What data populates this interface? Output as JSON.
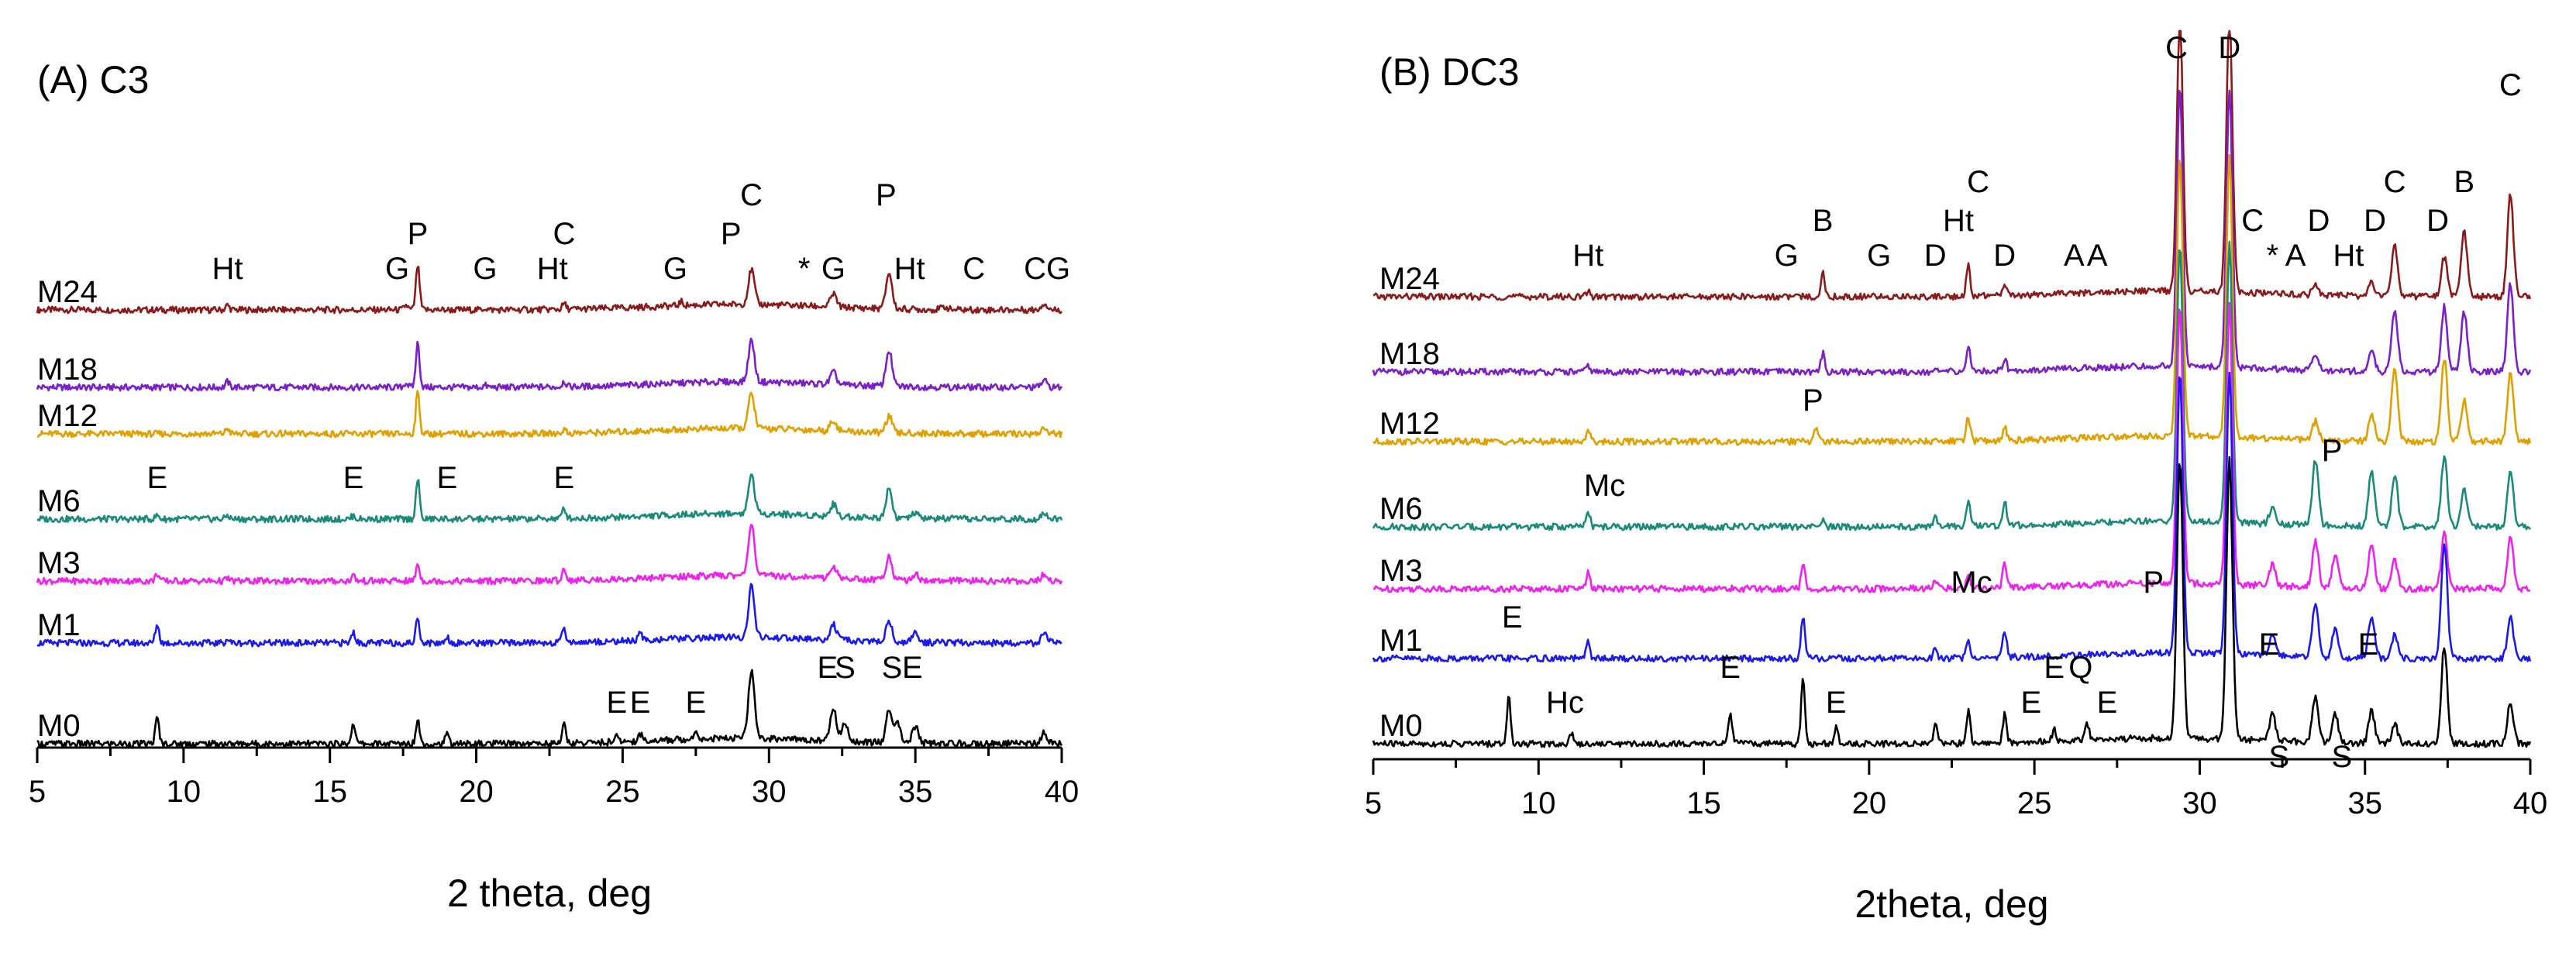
{
  "chart_data": [
    {
      "type": "line",
      "panel": "A",
      "title": "(A)  C3",
      "xlabel": "2 theta, deg",
      "ylabel": "",
      "xlim": [
        5,
        40
      ],
      "xticks": [
        "5",
        "10",
        "15",
        "20",
        "25",
        "30",
        "35",
        "40"
      ],
      "series": [
        {
          "name": "M24",
          "color": "#8b1a1a",
          "peaks": [
            [
              11.5,
              0.1
            ],
            [
              17.6,
              0.1
            ],
            [
              18.0,
              0.95
            ],
            [
              20.3,
              0.04
            ],
            [
              23.0,
              0.12
            ],
            [
              27.0,
              0.08
            ],
            [
              29.4,
              0.75
            ],
            [
              32.2,
              0.28
            ],
            [
              34.1,
              0.78
            ],
            [
              36.0,
              0.06
            ],
            [
              39.4,
              0.14
            ]
          ]
        },
        {
          "name": "M18",
          "color": "#7a1fc9",
          "peaks": [
            [
              11.5,
              0.12
            ],
            [
              17.6,
              0.1
            ],
            [
              18.0,
              0.95
            ],
            [
              20.3,
              0.04
            ],
            [
              23.0,
              0.12
            ],
            [
              29.4,
              0.9
            ],
            [
              32.2,
              0.26
            ],
            [
              34.1,
              0.78
            ],
            [
              39.4,
              0.14
            ]
          ]
        },
        {
          "name": "M12",
          "color": "#e0a000",
          "peaks": [
            [
              11.5,
              0.12
            ],
            [
              18.0,
              0.9
            ],
            [
              23.0,
              0.08
            ],
            [
              29.4,
              0.75
            ],
            [
              32.2,
              0.24
            ],
            [
              34.1,
              0.36
            ],
            [
              39.4,
              0.12
            ]
          ]
        },
        {
          "name": "M6",
          "color": "#1a8a7a",
          "peaks": [
            [
              9.1,
              0.08
            ],
            [
              11.5,
              0.08
            ],
            [
              15.8,
              0.07
            ],
            [
              18.0,
              0.85
            ],
            [
              23.0,
              0.22
            ],
            [
              29.4,
              0.85
            ],
            [
              32.2,
              0.26
            ],
            [
              34.1,
              0.65
            ],
            [
              35.0,
              0.12
            ],
            [
              39.4,
              0.14
            ]
          ]
        },
        {
          "name": "M3",
          "color": "#ee22ee",
          "peaks": [
            [
              9.1,
              0.16
            ],
            [
              11.5,
              0.06
            ],
            [
              15.8,
              0.12
            ],
            [
              18.0,
              0.36
            ],
            [
              23.0,
              0.26
            ],
            [
              29.4,
              1.15
            ],
            [
              32.2,
              0.26
            ],
            [
              34.1,
              0.52
            ],
            [
              35.0,
              0.14
            ],
            [
              39.4,
              0.14
            ]
          ]
        },
        {
          "name": "M1",
          "color": "#1a1aee",
          "peaks": [
            [
              9.1,
              0.4
            ],
            [
              11.5,
              0.08
            ],
            [
              15.8,
              0.24
            ],
            [
              18.0,
              0.55
            ],
            [
              19.0,
              0.14
            ],
            [
              23.0,
              0.3
            ],
            [
              25.6,
              0.14
            ],
            [
              29.4,
              1.1
            ],
            [
              32.2,
              0.34
            ],
            [
              34.1,
              0.45
            ],
            [
              35.0,
              0.2
            ],
            [
              39.4,
              0.2
            ]
          ]
        },
        {
          "name": "M0",
          "color": "#000000",
          "peaks": [
            [
              9.1,
              0.55
            ],
            [
              15.8,
              0.45
            ],
            [
              18.0,
              0.52
            ],
            [
              19.0,
              0.2
            ],
            [
              23.0,
              0.4
            ],
            [
              24.8,
              0.12
            ],
            [
              25.6,
              0.16
            ],
            [
              27.5,
              0.18
            ],
            [
              29.4,
              1.45
            ],
            [
              32.2,
              0.7
            ],
            [
              32.6,
              0.4
            ],
            [
              34.1,
              0.7
            ],
            [
              34.4,
              0.4
            ],
            [
              35.0,
              0.36
            ],
            [
              39.4,
              0.24
            ]
          ]
        }
      ],
      "annotations": [
        {
          "text": "Ht",
          "x": 11.5,
          "row": "M24"
        },
        {
          "text": "G",
          "x": 17.3,
          "row": "M24"
        },
        {
          "text": "P",
          "x": 18.0,
          "row": "M24_high"
        },
        {
          "text": "G",
          "x": 20.3,
          "row": "M24"
        },
        {
          "text": "Ht",
          "x": 22.6,
          "row": "M24"
        },
        {
          "text": "C",
          "x": 23.0,
          "row": "M24_high"
        },
        {
          "text": "G",
          "x": 26.8,
          "row": "M24"
        },
        {
          "text": "P",
          "x": 28.7,
          "row": "M24_high"
        },
        {
          "text": "C",
          "x": 29.4,
          "row": "M24_top"
        },
        {
          "text": "*",
          "x": 31.2,
          "row": "M24"
        },
        {
          "text": "G",
          "x": 32.2,
          "row": "M24"
        },
        {
          "text": "P",
          "x": 34.0,
          "row": "M24_top"
        },
        {
          "text": "Ht",
          "x": 34.8,
          "row": "M24"
        },
        {
          "text": "C",
          "x": 37.0,
          "row": "M24"
        },
        {
          "text": "CG",
          "x": 39.5,
          "row": "M24"
        },
        {
          "text": "E",
          "x": 9.1,
          "row": "M6"
        },
        {
          "text": "E",
          "x": 15.8,
          "row": "M6"
        },
        {
          "text": "E",
          "x": 19.0,
          "row": "M6"
        },
        {
          "text": "E",
          "x": 23.0,
          "row": "M6"
        },
        {
          "text": "E",
          "x": 24.8,
          "row": "M0"
        },
        {
          "text": "E",
          "x": 25.6,
          "row": "M0"
        },
        {
          "text": "E",
          "x": 27.5,
          "row": "M0"
        },
        {
          "text": "E",
          "x": 32.0,
          "row": "M0_high"
        },
        {
          "text": "S",
          "x": 32.6,
          "row": "M0_high"
        },
        {
          "text": "S",
          "x": 34.2,
          "row": "M0_high"
        },
        {
          "text": "E",
          "x": 34.9,
          "row": "M0_high"
        }
      ]
    },
    {
      "type": "line",
      "panel": "B",
      "title": "(B)  DC3",
      "xlabel": "2theta, deg",
      "ylabel": "",
      "xlim": [
        5,
        40
      ],
      "xticks": [
        "5",
        "10",
        "15",
        "20",
        "25",
        "30",
        "35",
        "40"
      ],
      "series": [
        {
          "name": "M24",
          "color": "#8b1a1a",
          "peaks": [
            [
              11.5,
              0.12
            ],
            [
              18.6,
              0.55
            ],
            [
              23.0,
              0.65
            ],
            [
              24.1,
              0.28
            ],
            [
              29.4,
              6.0
            ],
            [
              30.9,
              6.0
            ],
            [
              33.5,
              0.2
            ],
            [
              35.2,
              0.3
            ],
            [
              35.9,
              1.1
            ],
            [
              37.4,
              0.85
            ],
            [
              38.0,
              1.4
            ],
            [
              39.4,
              2.2
            ]
          ]
        },
        {
          "name": "M18",
          "color": "#7a1fc9",
          "peaks": [
            [
              11.5,
              0.14
            ],
            [
              18.6,
              0.4
            ],
            [
              23.0,
              0.55
            ],
            [
              24.1,
              0.28
            ],
            [
              29.4,
              6.0
            ],
            [
              30.9,
              6.0
            ],
            [
              33.5,
              0.3
            ],
            [
              35.2,
              0.4
            ],
            [
              35.9,
              1.3
            ],
            [
              37.4,
              1.4
            ],
            [
              38.0,
              1.3
            ],
            [
              39.4,
              1.9
            ]
          ]
        },
        {
          "name": "M12",
          "color": "#e0a000",
          "peaks": [
            [
              11.5,
              0.28
            ],
            [
              18.4,
              0.35
            ],
            [
              23.0,
              0.55
            ],
            [
              24.1,
              0.32
            ],
            [
              29.4,
              6.0
            ],
            [
              30.9,
              6.0
            ],
            [
              33.5,
              0.4
            ],
            [
              35.2,
              0.6
            ],
            [
              35.9,
              1.6
            ],
            [
              37.4,
              1.8
            ],
            [
              38.0,
              0.9
            ],
            [
              39.4,
              1.5
            ]
          ]
        },
        {
          "name": "M6",
          "color": "#1a8a7a",
          "peaks": [
            [
              11.5,
              0.35
            ],
            [
              18.6,
              0.12
            ],
            [
              22.0,
              0.2
            ],
            [
              23.0,
              0.55
            ],
            [
              24.1,
              0.55
            ],
            [
              29.4,
              6.0
            ],
            [
              30.9,
              6.0
            ],
            [
              32.2,
              0.35
            ],
            [
              33.5,
              1.4
            ],
            [
              35.2,
              1.2
            ],
            [
              35.9,
              1.1
            ],
            [
              37.4,
              1.5
            ],
            [
              38.0,
              0.8
            ],
            [
              39.4,
              1.2
            ]
          ]
        },
        {
          "name": "M3",
          "color": "#ee22ee",
          "peaks": [
            [
              11.5,
              0.35
            ],
            [
              18.0,
              0.55
            ],
            [
              22.0,
              0.2
            ],
            [
              23.0,
              0.35
            ],
            [
              24.1,
              0.55
            ],
            [
              29.4,
              6.0
            ],
            [
              30.9,
              6.0
            ],
            [
              32.2,
              0.45
            ],
            [
              33.5,
              1.0
            ],
            [
              34.1,
              0.7
            ],
            [
              35.2,
              1.0
            ],
            [
              35.9,
              0.6
            ],
            [
              37.4,
              1.2
            ],
            [
              39.4,
              1.1
            ]
          ]
        },
        {
          "name": "M1",
          "color": "#1a1aee",
          "peaks": [
            [
              11.5,
              0.35
            ],
            [
              18.0,
              0.9
            ],
            [
              22.0,
              0.2
            ],
            [
              23.0,
              0.4
            ],
            [
              24.1,
              0.6
            ],
            [
              29.4,
              6.0
            ],
            [
              30.9,
              6.0
            ],
            [
              32.2,
              0.4
            ],
            [
              33.5,
              1.2
            ],
            [
              34.1,
              0.6
            ],
            [
              35.2,
              0.9
            ],
            [
              35.9,
              0.5
            ],
            [
              37.4,
              2.5
            ],
            [
              39.4,
              0.9
            ]
          ]
        },
        {
          "name": "M0",
          "color": "#000000",
          "peaks": [
            [
              9.1,
              1.0
            ],
            [
              11.0,
              0.25
            ],
            [
              15.8,
              0.7
            ],
            [
              18.0,
              1.4
            ],
            [
              19.0,
              0.35
            ],
            [
              22.0,
              0.4
            ],
            [
              23.0,
              0.7
            ],
            [
              24.1,
              0.6
            ],
            [
              25.6,
              0.25
            ],
            [
              26.6,
              0.35
            ],
            [
              29.4,
              6.0
            ],
            [
              30.9,
              6.0
            ],
            [
              32.2,
              0.6
            ],
            [
              33.5,
              1.0
            ],
            [
              34.1,
              0.6
            ],
            [
              35.2,
              0.7
            ],
            [
              35.9,
              0.4
            ],
            [
              37.4,
              2.1
            ],
            [
              39.4,
              0.9
            ]
          ]
        }
      ],
      "annotations": [
        {
          "text": "Ht",
          "x": 11.5,
          "row": "M24"
        },
        {
          "text": "G",
          "x": 17.5,
          "row": "M24"
        },
        {
          "text": "B",
          "x": 18.6,
          "row": "M24_high"
        },
        {
          "text": "G",
          "x": 20.3,
          "row": "M24"
        },
        {
          "text": "D",
          "x": 22.0,
          "row": "M24"
        },
        {
          "text": "Ht",
          "x": 22.7,
          "row": "M24_high"
        },
        {
          "text": "C",
          "x": 23.3,
          "row": "M24_top"
        },
        {
          "text": "D",
          "x": 24.1,
          "row": "M24"
        },
        {
          "text": "A",
          "x": 26.2,
          "row": "M24"
        },
        {
          "text": "A",
          "x": 26.9,
          "row": "M24"
        },
        {
          "text": "C",
          "x": 29.3,
          "row": "top"
        },
        {
          "text": "D",
          "x": 30.9,
          "row": "top"
        },
        {
          "text": "C",
          "x": 31.6,
          "row": "M24_high"
        },
        {
          "text": "*",
          "x": 32.2,
          "row": "M24"
        },
        {
          "text": "A",
          "x": 32.9,
          "row": "M24"
        },
        {
          "text": "D",
          "x": 33.6,
          "row": "M24_high"
        },
        {
          "text": "Ht",
          "x": 34.5,
          "row": "M24"
        },
        {
          "text": "D",
          "x": 35.3,
          "row": "M24_high"
        },
        {
          "text": "C",
          "x": 35.9,
          "row": "M24_top"
        },
        {
          "text": "D",
          "x": 37.2,
          "row": "M24_high"
        },
        {
          "text": "B",
          "x": 38.0,
          "row": "M24_top"
        },
        {
          "text": "C",
          "x": 39.4,
          "row": "M24_peak"
        },
        {
          "text": "P",
          "x": 18.3,
          "row": "M12"
        },
        {
          "text": "Mc",
          "x": 12.0,
          "row": "M6"
        },
        {
          "text": "P",
          "x": 34.0,
          "row": "M6_high"
        },
        {
          "text": "Mc",
          "x": 23.1,
          "row": "M1_high"
        },
        {
          "text": "P",
          "x": 28.6,
          "row": "M1_high"
        },
        {
          "text": "E",
          "x": 9.2,
          "row": "M1"
        },
        {
          "text": "Hc",
          "x": 10.8,
          "row": "M0"
        },
        {
          "text": "E",
          "x": 15.8,
          "row": "M0_high"
        },
        {
          "text": "E",
          "x": 19.0,
          "row": "M0"
        },
        {
          "text": "E",
          "x": 24.9,
          "row": "M0"
        },
        {
          "text": "E",
          "x": 25.6,
          "row": "M0_high"
        },
        {
          "text": "Q",
          "x": 26.4,
          "row": "M0_high"
        },
        {
          "text": "E",
          "x": 27.2,
          "row": "M0"
        },
        {
          "text": "E",
          "x": 32.1,
          "row": "M0_high2"
        },
        {
          "text": "S",
          "x": 32.4,
          "row": "M0_low"
        },
        {
          "text": "S",
          "x": 34.3,
          "row": "M0_low"
        },
        {
          "text": "E",
          "x": 35.1,
          "row": "M0_high2"
        }
      ]
    }
  ]
}
